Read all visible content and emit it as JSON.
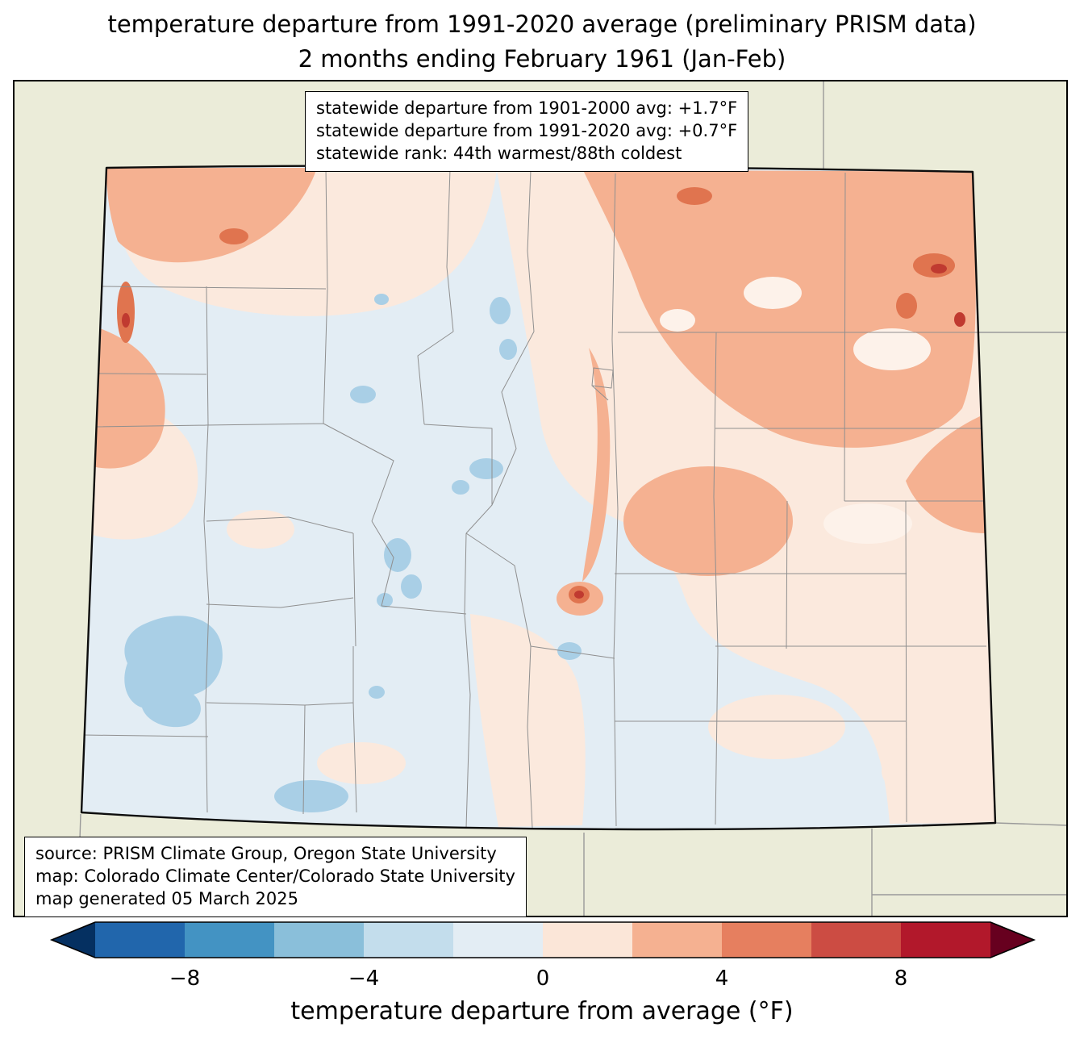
{
  "title": {
    "line1": "temperature departure from 1991-2020 average (preliminary PRISM data)",
    "line2": "2 months ending February 1961 (Jan-Feb)"
  },
  "stats_box": {
    "line1": "statewide departure from 1901-2000 avg: +1.7°F",
    "line2": "statewide departure from 1991-2020 avg: +0.7°F",
    "line3": "statewide rank: 44th warmest/88th coldest"
  },
  "source_box": {
    "line1": "source: PRISM Climate Group, Oregon State University",
    "line2": "map: Colorado Climate Center/Colorado State University",
    "line3": "map generated 05 March 2025"
  },
  "colorbar": {
    "label": "temperature departure from average (°F)",
    "range": [
      -10,
      10
    ],
    "ticks": [
      {
        "value": -8,
        "label": "−8"
      },
      {
        "value": -4,
        "label": "−4"
      },
      {
        "value": 0,
        "label": "0"
      },
      {
        "value": 4,
        "label": "4"
      },
      {
        "value": 8,
        "label": "8"
      }
    ],
    "arrow_left_color": "#053061",
    "arrow_right_color": "#67001f",
    "segment_colors": [
      "#2166ac",
      "#4393c3",
      "#8abfda",
      "#c3ddec",
      "#e3edf4",
      "#fbe6d8",
      "#f5b191",
      "#e67f5f",
      "#cc4c43",
      "#b2182b"
    ]
  },
  "map": {
    "region": "Colorado",
    "colors": {
      "outside": "#ebecd9",
      "neutral_cool": "#e3edf4",
      "neutral_warm": "#fbe9dd",
      "warm_light": "#fdf2ea",
      "warm": "#f5b191",
      "warm_strong": "#e0744f",
      "warm_intense": "#c03a30",
      "cool": "#a9cfe6"
    }
  }
}
